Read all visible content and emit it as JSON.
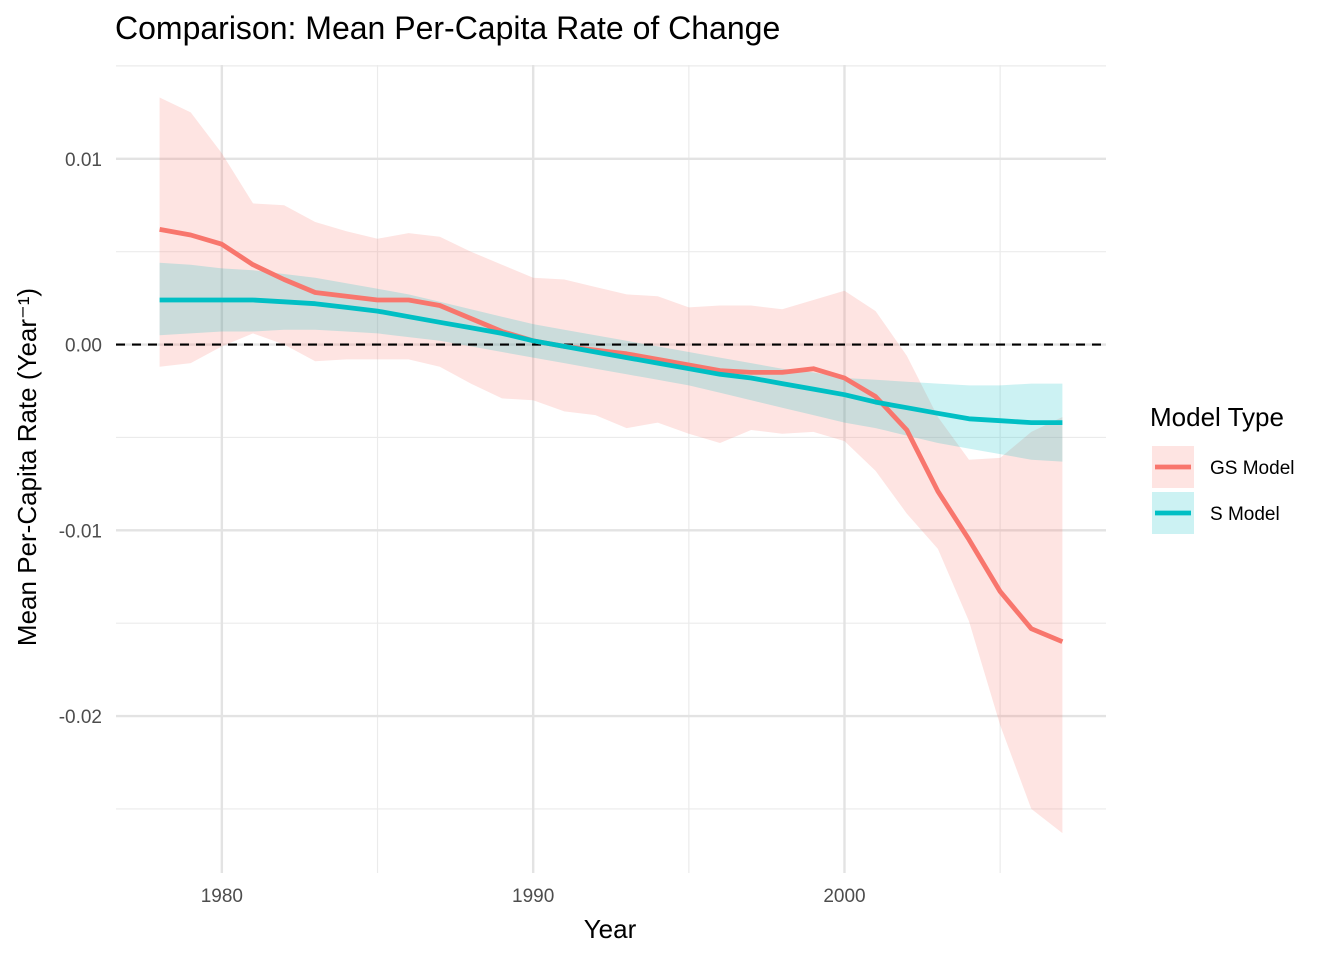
{
  "chart_data": {
    "type": "line",
    "title": "Comparison: Mean Per-Capita Rate of Change",
    "xlabel": "Year",
    "ylabel": "Mean Per-Capita Rate (Year⁻¹)",
    "xlim": [
      1976.6,
      2008.4
    ],
    "ylim": [
      -0.02845,
      0.01505
    ],
    "x_ticks": [
      1980,
      1990,
      2000
    ],
    "x_tick_labels": [
      "1980",
      "1990",
      "2000"
    ],
    "y_ticks": [
      0.01,
      0.0,
      -0.01,
      -0.02
    ],
    "y_tick_labels": [
      "0.01",
      "0.00",
      "-0.01",
      "-0.02"
    ],
    "grid": true,
    "reference_line": {
      "y": 0,
      "style": "dashed"
    },
    "legend": {
      "title": "Model Type",
      "position": "right"
    },
    "x": [
      1978,
      1979,
      1980,
      1981,
      1982,
      1983,
      1984,
      1985,
      1986,
      1987,
      1988,
      1989,
      1990,
      1991,
      1992,
      1993,
      1994,
      1995,
      1996,
      1997,
      1998,
      1999,
      2000,
      2001,
      2002,
      2003,
      2004,
      2005,
      2006,
      2007
    ],
    "series": [
      {
        "name": "GS Model",
        "color": "#F8766D",
        "values": [
          0.0062,
          0.0059,
          0.0054,
          0.0043,
          0.0035,
          0.0028,
          0.0026,
          0.0024,
          0.0024,
          0.0021,
          0.0014,
          0.0007,
          0.0002,
          -0.0001,
          -0.0003,
          -0.0005,
          -0.0008,
          -0.0011,
          -0.0014,
          -0.0015,
          -0.0015,
          -0.0013,
          -0.0018,
          -0.0028,
          -0.0046,
          -0.0079,
          -0.0105,
          -0.0133,
          -0.0153,
          -0.016
        ],
        "lower": [
          -0.0012,
          -0.001,
          -0.0001,
          0.0006,
          0.0,
          -0.0009,
          -0.0008,
          -0.0008,
          -0.0008,
          -0.0012,
          -0.0021,
          -0.0029,
          -0.003,
          -0.0036,
          -0.0038,
          -0.0045,
          -0.0042,
          -0.0048,
          -0.0053,
          -0.0046,
          -0.0048,
          -0.0047,
          -0.0052,
          -0.0068,
          -0.0091,
          -0.011,
          -0.0149,
          -0.0205,
          -0.025,
          -0.0263
        ],
        "upper": [
          0.0133,
          0.0125,
          0.0103,
          0.0076,
          0.0075,
          0.0066,
          0.0061,
          0.0057,
          0.006,
          0.0058,
          0.005,
          0.0043,
          0.0036,
          0.0035,
          0.0031,
          0.0027,
          0.0026,
          0.002,
          0.0021,
          0.0021,
          0.0019,
          0.0024,
          0.0029,
          0.0018,
          -0.0006,
          -0.0039,
          -0.0062,
          -0.0061,
          -0.0047,
          -0.0039
        ]
      },
      {
        "name": "S Model",
        "color": "#00BFC4",
        "values": [
          0.0024,
          0.0024,
          0.0024,
          0.0024,
          0.0023,
          0.0022,
          0.002,
          0.0018,
          0.0015,
          0.0012,
          0.0009,
          0.0006,
          0.0002,
          -0.0001,
          -0.0004,
          -0.0007,
          -0.001,
          -0.0013,
          -0.0016,
          -0.0018,
          -0.0021,
          -0.0024,
          -0.0027,
          -0.0031,
          -0.0034,
          -0.0037,
          -0.004,
          -0.0041,
          -0.0042,
          -0.0042
        ],
        "lower": [
          0.0005,
          0.0006,
          0.0007,
          0.0007,
          0.0008,
          0.0008,
          0.0007,
          0.0006,
          0.0004,
          0.0002,
          -0.0001,
          -0.0004,
          -0.0007,
          -0.001,
          -0.0013,
          -0.0016,
          -0.0019,
          -0.0022,
          -0.0026,
          -0.003,
          -0.0034,
          -0.0038,
          -0.0042,
          -0.0045,
          -0.0049,
          -0.0053,
          -0.0056,
          -0.0059,
          -0.0062,
          -0.0063
        ],
        "upper": [
          0.0044,
          0.0043,
          0.0041,
          0.004,
          0.0038,
          0.0036,
          0.0033,
          0.003,
          0.0027,
          0.0023,
          0.0019,
          0.0015,
          0.0011,
          0.0008,
          0.0005,
          0.0002,
          -0.0001,
          -0.0004,
          -0.0007,
          -0.001,
          -0.0013,
          -0.0015,
          -0.0018,
          -0.0019,
          -0.002,
          -0.0021,
          -0.0022,
          -0.0022,
          -0.0021,
          -0.0021
        ]
      }
    ]
  }
}
